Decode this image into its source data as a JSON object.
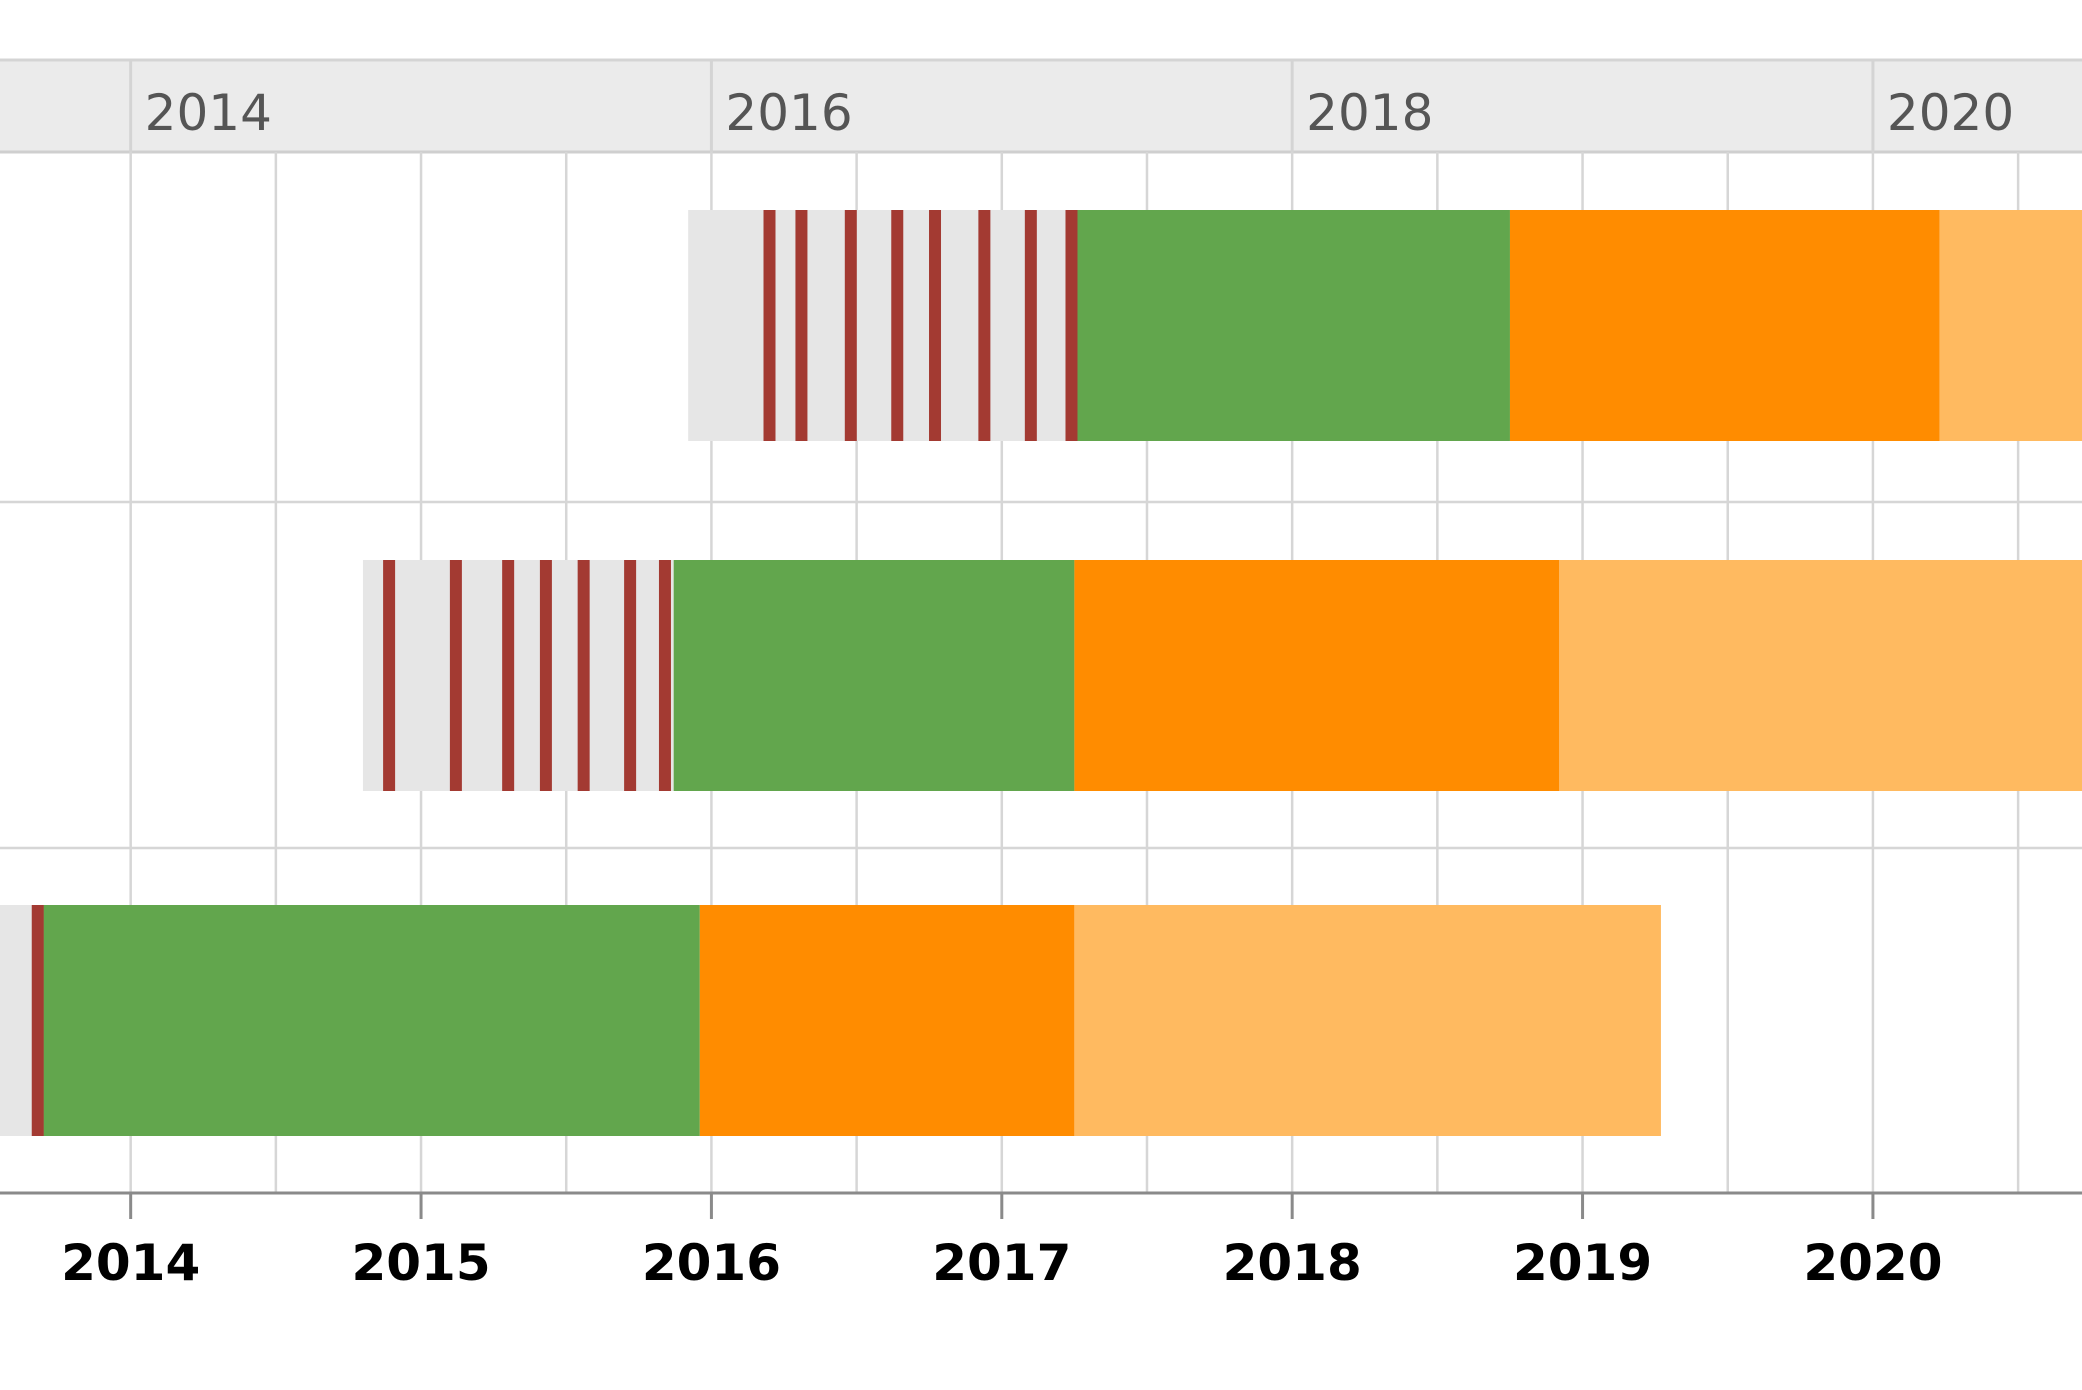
{
  "chart_data": {
    "type": "timeline",
    "title": "",
    "xlabel": "",
    "ylabel": "",
    "x_unit": "year",
    "x_range": [
      2013.55,
      2020.72
    ],
    "top_axis": {
      "tick_values": [
        2014,
        2016,
        2018,
        2020
      ],
      "tick_labels": [
        "2014",
        "2016",
        "2018",
        "2020"
      ]
    },
    "bottom_axis": {
      "tick_values": [
        2014,
        2015,
        2016,
        2017,
        2018,
        2019,
        2020
      ],
      "tick_labels": [
        "2014",
        "2015",
        "2016",
        "2017",
        "2018",
        "2019",
        "2020"
      ]
    },
    "grid": true,
    "colors": {
      "gray": "#e6e6e6",
      "tick": "#a33a32",
      "green": "#62a64d",
      "orange": "#ff8c00",
      "light_orange": "#ffba60"
    },
    "rows": [
      {
        "segments": [
          {
            "kind": "gray",
            "start": 2015.92,
            "end": 2017.25
          },
          {
            "kind": "green",
            "start": 2017.25,
            "end": 2018.75
          },
          {
            "kind": "orange",
            "start": 2018.75,
            "end": 2020.23
          },
          {
            "kind": "light_orange",
            "start": 2020.23,
            "end": 2020.72
          }
        ],
        "tick_marks": [
          2016.2,
          2016.31,
          2016.48,
          2016.64,
          2016.77,
          2016.94,
          2017.1,
          2017.24
        ]
      },
      {
        "segments": [
          {
            "kind": "gray",
            "start": 2014.8,
            "end": 2015.87
          },
          {
            "kind": "green",
            "start": 2015.87,
            "end": 2017.25
          },
          {
            "kind": "orange",
            "start": 2017.25,
            "end": 2018.92
          },
          {
            "kind": "light_orange",
            "start": 2018.92,
            "end": 2020.72
          }
        ],
        "tick_marks": [
          2014.89,
          2015.12,
          2015.3,
          2015.43,
          2015.56,
          2015.72,
          2015.84
        ]
      },
      {
        "segments": [
          {
            "kind": "gray",
            "start": 2013.55,
            "end": 2013.7
          },
          {
            "kind": "green",
            "start": 2013.7,
            "end": 2015.96
          },
          {
            "kind": "orange",
            "start": 2015.96,
            "end": 2017.25
          },
          {
            "kind": "light_orange",
            "start": 2017.25,
            "end": 2019.27
          }
        ],
        "tick_marks": [
          2013.68
        ]
      }
    ]
  }
}
